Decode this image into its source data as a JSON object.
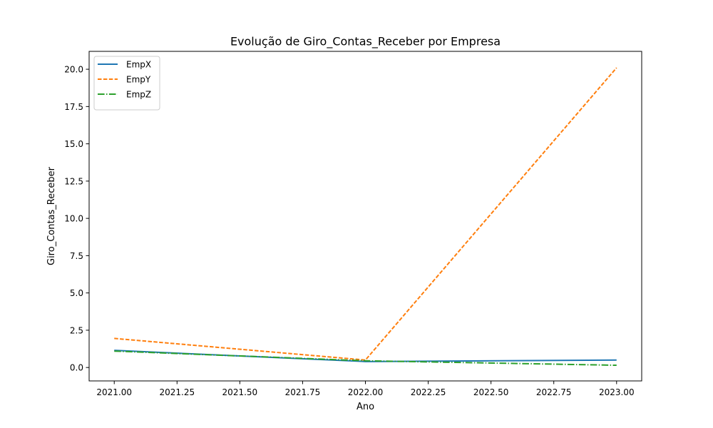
{
  "chart_data": {
    "type": "line",
    "title": "Evolução de Giro_Contas_Receber por Empresa",
    "xlabel": "Ano",
    "ylabel": "Giro_Contas_Receber",
    "xlim": [
      2020.9,
      2023.1
    ],
    "ylim": [
      -0.9,
      21.2
    ],
    "x": [
      2021,
      2022,
      2023
    ],
    "xticks": [
      2021.0,
      2021.25,
      2021.5,
      2021.75,
      2022.0,
      2022.25,
      2022.5,
      2022.75,
      2023.0
    ],
    "xtick_labels": [
      "2021.00",
      "2021.25",
      "2021.50",
      "2021.75",
      "2022.00",
      "2022.25",
      "2022.50",
      "2022.75",
      "2023.00"
    ],
    "yticks": [
      0,
      2.5,
      5,
      7.5,
      10,
      12.5,
      15,
      17.5,
      20
    ],
    "ytick_labels": [
      "0.0",
      "2.5",
      "5.0",
      "7.5",
      "10.0",
      "12.5",
      "15.0",
      "17.5",
      "20.0"
    ],
    "grid": false,
    "legend_position": "upper-left",
    "series": [
      {
        "name": "EmpX",
        "values": [
          1.15,
          0.4,
          0.5
        ],
        "color": "#1f77b4",
        "dash": "solid"
      },
      {
        "name": "EmpY",
        "values": [
          1.95,
          0.5,
          20.1
        ],
        "color": "#ff7f0e",
        "dash": "dashed"
      },
      {
        "name": "EmpZ",
        "values": [
          1.1,
          0.45,
          0.15
        ],
        "color": "#2ca02c",
        "dash": "dashdot"
      }
    ]
  }
}
